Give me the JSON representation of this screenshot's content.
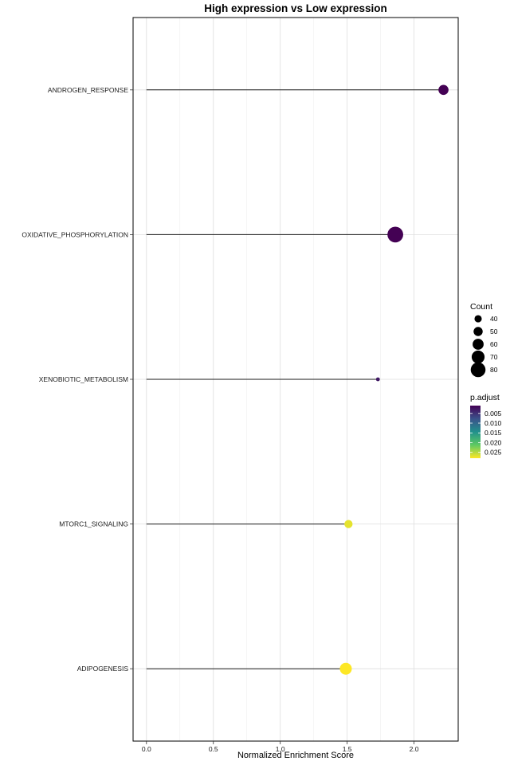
{
  "chart_data": {
    "type": "scatter",
    "subtype": "lollipop",
    "title": "High expression vs Low expression",
    "xlabel": "Normalized Enrichment Score",
    "ylabel": "",
    "xlim": [
      -0.1,
      2.33
    ],
    "x_ticks": [
      "0.0",
      "0.5",
      "1.0",
      "1.5",
      "2.0"
    ],
    "x_tick_values": [
      0.0,
      0.5,
      1.0,
      1.5,
      2.0
    ],
    "grid": true,
    "categories": [
      "ANDROGEN_RESPONSE",
      "OXIDATIVE_PHOSPHORYLATION",
      "XENOBIOTIC_METABOLISM",
      "MTORC1_SIGNALING",
      "ADIPOGENESIS"
    ],
    "points": [
      {
        "term": "ANDROGEN_RESPONSE",
        "nes": 2.22,
        "count": 55,
        "p_adjust": 0.001
      },
      {
        "term": "OXIDATIVE_PHOSPHORYLATION",
        "nes": 1.86,
        "count": 85,
        "p_adjust": 0.001
      },
      {
        "term": "XENOBIOTIC_METABOLISM",
        "nes": 1.73,
        "count": 22,
        "p_adjust": 0.003
      },
      {
        "term": "MTORC1_SIGNALING",
        "nes": 1.51,
        "count": 45,
        "p_adjust": 0.027
      },
      {
        "term": "ADIPOGENESIS",
        "nes": 1.49,
        "count": 65,
        "p_adjust": 0.028
      }
    ],
    "legend_count": {
      "title": "Count",
      "values": [
        40,
        50,
        60,
        70,
        80
      ],
      "labels": [
        "40",
        "50",
        "60",
        "70",
        "80"
      ]
    },
    "legend_padjust": {
      "title": "p.adjust",
      "range": [
        0.001,
        0.028
      ],
      "ticks": [
        0.005,
        0.01,
        0.015,
        0.02,
        0.025
      ],
      "labels": [
        "0.005",
        "0.010",
        "0.015",
        "0.020",
        "0.025"
      ],
      "colors": [
        "#440154",
        "#3b528b",
        "#21918c",
        "#5ec962",
        "#fde725"
      ]
    },
    "legend_position": "right"
  }
}
